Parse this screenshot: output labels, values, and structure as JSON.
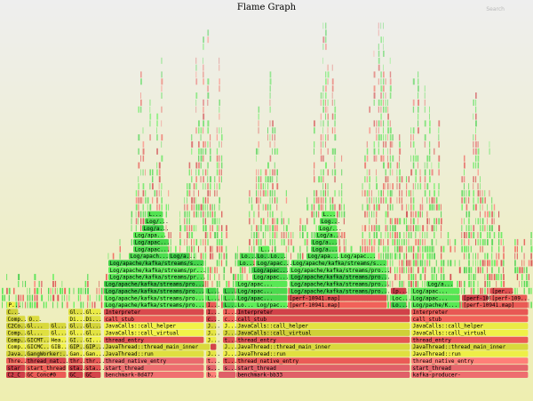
{
  "header": {
    "title": "Flame Graph",
    "search_label": "Search"
  },
  "colors": {
    "java": "#50e050",
    "jit": "#e0e040",
    "cpp": "#e05050",
    "light": "#f07070"
  },
  "chart_data": {
    "type": "flame",
    "title": "Flame Graph",
    "frames": [
      {
        "depth": 0,
        "x": 7,
        "w": 22,
        "label": "C2_C",
        "kind": "cpp"
      },
      {
        "depth": 0,
        "x": 29,
        "w": 46,
        "label": "GC_Conc#0",
        "kind": "cpp"
      },
      {
        "depth": 0,
        "x": 77,
        "w": 17,
        "label": "GC_",
        "kind": "cpp"
      },
      {
        "depth": 0,
        "x": 95,
        "w": 19,
        "label": "GC_",
        "kind": "cpp"
      },
      {
        "depth": 0,
        "x": 117,
        "w": 113,
        "label": "benchmark-0d477",
        "kind": "light"
      },
      {
        "depth": 0,
        "x": 232,
        "w": 12,
        "label": "b...",
        "kind": "light"
      },
      {
        "depth": 0,
        "x": 246,
        "w": 20,
        "label": "",
        "kind": "light"
      },
      {
        "depth": 0,
        "x": 266,
        "w": 196,
        "label": "benchmark-bb33",
        "kind": "light"
      },
      {
        "depth": 0,
        "x": 463,
        "w": 132,
        "label": "kafka-producer-",
        "kind": "light"
      },
      {
        "depth": 1,
        "x": 7,
        "w": 22,
        "label": "star",
        "kind": "cpp"
      },
      {
        "depth": 1,
        "x": 29,
        "w": 46,
        "label": "start_thread",
        "kind": "cpp"
      },
      {
        "depth": 1,
        "x": 77,
        "w": 17,
        "label": "sta...",
        "kind": "cpp"
      },
      {
        "depth": 1,
        "x": 95,
        "w": 19,
        "label": "sta...",
        "kind": "cpp"
      },
      {
        "depth": 1,
        "x": 117,
        "w": 113,
        "label": "start_thread",
        "kind": "light"
      },
      {
        "depth": 1,
        "x": 232,
        "w": 12,
        "label": "s...",
        "kind": "light"
      },
      {
        "depth": 1,
        "x": 251,
        "w": 14,
        "label": "s...",
        "kind": "light"
      },
      {
        "depth": 1,
        "x": 266,
        "w": 196,
        "label": "start_thread",
        "kind": "light"
      },
      {
        "depth": 1,
        "x": 463,
        "w": 132,
        "label": "start_thread",
        "kind": "light"
      },
      {
        "depth": 2,
        "x": 7,
        "w": 22,
        "label": "Thre...",
        "kind": "cpp"
      },
      {
        "depth": 2,
        "x": 29,
        "w": 46,
        "label": "thread_nat...",
        "kind": "cpp"
      },
      {
        "depth": 2,
        "x": 77,
        "w": 17,
        "label": "thr...",
        "kind": "cpp"
      },
      {
        "depth": 2,
        "x": 95,
        "w": 19,
        "label": "thr...",
        "kind": "cpp"
      },
      {
        "depth": 2,
        "x": 117,
        "w": 113,
        "label": "thread_native_entry",
        "kind": "light"
      },
      {
        "depth": 2,
        "x": 232,
        "w": 12,
        "label": "t...",
        "kind": "light"
      },
      {
        "depth": 2,
        "x": 251,
        "w": 14,
        "label": "t...",
        "kind": "cpp"
      },
      {
        "depth": 2,
        "x": 266,
        "w": 196,
        "label": "thread_native_entry",
        "kind": "cpp"
      },
      {
        "depth": 2,
        "x": 463,
        "w": 132,
        "label": "thread_native_entry",
        "kind": "light"
      },
      {
        "depth": 3,
        "x": 7,
        "w": 22,
        "label": "Java...",
        "kind": "jit"
      },
      {
        "depth": 3,
        "x": 29,
        "w": 46,
        "label": "GangWorker:...",
        "kind": "jit"
      },
      {
        "depth": 3,
        "x": 77,
        "w": 17,
        "label": "Gan...",
        "kind": "jit"
      },
      {
        "depth": 3,
        "x": 95,
        "w": 19,
        "label": "Gan...",
        "kind": "jit"
      },
      {
        "depth": 3,
        "x": 117,
        "w": 113,
        "label": "JavaThread::run",
        "kind": "jit"
      },
      {
        "depth": 3,
        "x": 232,
        "w": 12,
        "label": "J...",
        "kind": "jit"
      },
      {
        "depth": 3,
        "x": 251,
        "w": 14,
        "label": "J...",
        "kind": "jit"
      },
      {
        "depth": 3,
        "x": 266,
        "w": 196,
        "label": "JavaThread::run",
        "kind": "jit"
      },
      {
        "depth": 3,
        "x": 463,
        "w": 132,
        "label": "JavaThread::run",
        "kind": "jit"
      },
      {
        "depth": 4,
        "x": 7,
        "w": 22,
        "label": "Comp...",
        "kind": "jit"
      },
      {
        "depth": 4,
        "x": 29,
        "w": 27,
        "label": "GICMC...",
        "kind": "jit"
      },
      {
        "depth": 4,
        "x": 56,
        "w": 19,
        "label": "GIB...",
        "kind": "jit"
      },
      {
        "depth": 4,
        "x": 77,
        "w": 17,
        "label": "GIP...",
        "kind": "jit"
      },
      {
        "depth": 4,
        "x": 95,
        "w": 19,
        "label": "GIP...",
        "kind": "jit"
      },
      {
        "depth": 4,
        "x": 117,
        "w": 120,
        "label": "JavaThread::thread_main_inner",
        "kind": "jit"
      },
      {
        "depth": 4,
        "x": 237,
        "w": 7,
        "label": "",
        "kind": "cpp"
      },
      {
        "depth": 4,
        "x": 251,
        "w": 14,
        "label": "J...",
        "kind": "jit"
      },
      {
        "depth": 4,
        "x": 266,
        "w": 196,
        "label": "JavaThread::thread_main_inner",
        "kind": "jit"
      },
      {
        "depth": 4,
        "x": 463,
        "w": 132,
        "label": "JavaThread::thread_main_inner",
        "kind": "jit"
      },
      {
        "depth": 5,
        "x": 7,
        "w": 22,
        "label": "Comp...",
        "kind": "jit"
      },
      {
        "depth": 5,
        "x": 29,
        "w": 27,
        "label": "GICMT...",
        "kind": "jit"
      },
      {
        "depth": 5,
        "x": 56,
        "w": 19,
        "label": "Hea...",
        "kind": "jit"
      },
      {
        "depth": 5,
        "x": 77,
        "w": 17,
        "label": "GI...",
        "kind": "jit"
      },
      {
        "depth": 5,
        "x": 95,
        "w": 19,
        "label": "GI...",
        "kind": "jit"
      },
      {
        "depth": 5,
        "x": 117,
        "w": 113,
        "label": "thread_entry",
        "kind": "cpp"
      },
      {
        "depth": 5,
        "x": 232,
        "w": 12,
        "label": "J...",
        "kind": "jit"
      },
      {
        "depth": 5,
        "x": 251,
        "w": 14,
        "label": "t...",
        "kind": "cpp"
      },
      {
        "depth": 5,
        "x": 266,
        "w": 196,
        "label": "thread_entry",
        "kind": "cpp"
      },
      {
        "depth": 5,
        "x": 463,
        "w": 132,
        "label": "thread_entry",
        "kind": "cpp"
      },
      {
        "depth": 6,
        "x": 7,
        "w": 22,
        "label": "Comp...",
        "kind": "jit"
      },
      {
        "depth": 6,
        "x": 29,
        "w": 27,
        "label": "Gl...",
        "kind": "jit"
      },
      {
        "depth": 6,
        "x": 56,
        "w": 19,
        "label": "Gl...",
        "kind": "jit"
      },
      {
        "depth": 6,
        "x": 77,
        "w": 17,
        "label": "Gl...",
        "kind": "jit"
      },
      {
        "depth": 6,
        "x": 95,
        "w": 19,
        "label": "Gl...",
        "kind": "jit"
      },
      {
        "depth": 6,
        "x": 117,
        "w": 113,
        "label": "JavaCalls::call_virtual",
        "kind": "jit"
      },
      {
        "depth": 6,
        "x": 232,
        "w": 12,
        "label": "J...",
        "kind": "jit"
      },
      {
        "depth": 6,
        "x": 251,
        "w": 14,
        "label": "J...",
        "kind": "jit"
      },
      {
        "depth": 6,
        "x": 266,
        "w": 196,
        "label": "JavaCalls::call_virtual",
        "kind": "jit"
      },
      {
        "depth": 6,
        "x": 463,
        "w": 132,
        "label": "JavaCalls::call_virtual",
        "kind": "jit"
      },
      {
        "depth": 7,
        "x": 7,
        "w": 22,
        "label": "C2Co...",
        "kind": "jit"
      },
      {
        "depth": 7,
        "x": 29,
        "w": 27,
        "label": "Gl...",
        "kind": "jit"
      },
      {
        "depth": 7,
        "x": 56,
        "w": 19,
        "label": "Gl...",
        "kind": "jit"
      },
      {
        "depth": 7,
        "x": 77,
        "w": 17,
        "label": "Gl...",
        "kind": "jit"
      },
      {
        "depth": 7,
        "x": 95,
        "w": 19,
        "label": "Gl...",
        "kind": "jit"
      },
      {
        "depth": 7,
        "x": 117,
        "w": 113,
        "label": "JavaCalls::call_helper",
        "kind": "jit"
      },
      {
        "depth": 7,
        "x": 232,
        "w": 12,
        "label": "J...",
        "kind": "jit"
      },
      {
        "depth": 7,
        "x": 251,
        "w": 14,
        "label": "J...",
        "kind": "jit"
      },
      {
        "depth": 7,
        "x": 266,
        "w": 196,
        "label": "JavaCalls::call_helper",
        "kind": "jit"
      },
      {
        "depth": 7,
        "x": 463,
        "w": 132,
        "label": "JavaCalls::call_helper",
        "kind": "jit"
      },
      {
        "depth": 8,
        "x": 7,
        "w": 22,
        "label": "Comp...",
        "kind": "jit"
      },
      {
        "depth": 8,
        "x": 31,
        "w": 14,
        "label": "O...",
        "kind": "jit"
      },
      {
        "depth": 8,
        "x": 77,
        "w": 17,
        "label": "Di...",
        "kind": "jit"
      },
      {
        "depth": 8,
        "x": 95,
        "w": 19,
        "label": "Di...",
        "kind": "jit"
      },
      {
        "depth": 8,
        "x": 117,
        "w": 113,
        "label": "call_stub",
        "kind": "cpp"
      },
      {
        "depth": 8,
        "x": 232,
        "w": 12,
        "label": "c...",
        "kind": "cpp"
      },
      {
        "depth": 8,
        "x": 251,
        "w": 14,
        "label": "c...",
        "kind": "cpp"
      },
      {
        "depth": 8,
        "x": 266,
        "w": 196,
        "label": "call_stub",
        "kind": "cpp"
      },
      {
        "depth": 8,
        "x": 463,
        "w": 132,
        "label": "call_stub",
        "kind": "cpp"
      },
      {
        "depth": 9,
        "x": 7,
        "w": 14,
        "label": "C...",
        "kind": "jit"
      },
      {
        "depth": 9,
        "x": 77,
        "w": 17,
        "label": "Gl...",
        "kind": "jit"
      },
      {
        "depth": 9,
        "x": 95,
        "w": 19,
        "label": "Gl...",
        "kind": "jit"
      },
      {
        "depth": 9,
        "x": 117,
        "w": 113,
        "label": "Interpreter",
        "kind": "cpp"
      },
      {
        "depth": 9,
        "x": 232,
        "w": 12,
        "label": "I...",
        "kind": "cpp"
      },
      {
        "depth": 9,
        "x": 251,
        "w": 14,
        "label": "I...",
        "kind": "cpp"
      },
      {
        "depth": 9,
        "x": 266,
        "w": 196,
        "label": "Interpreter",
        "kind": "cpp"
      },
      {
        "depth": 9,
        "x": 463,
        "w": 132,
        "label": "Interpreter",
        "kind": "cpp"
      },
      {
        "depth": 10,
        "x": 8,
        "w": 10,
        "label": "P...",
        "kind": "jit"
      },
      {
        "depth": 10,
        "x": 117,
        "w": 113,
        "label": "Log/apache/kafka/streams/pro...",
        "kind": "java"
      },
      {
        "depth": 10,
        "x": 232,
        "w": 12,
        "label": "I...",
        "kind": "cpp"
      },
      {
        "depth": 10,
        "x": 251,
        "w": 14,
        "label": "L...",
        "kind": "java"
      },
      {
        "depth": 10,
        "x": 266,
        "w": 58,
        "label": "Lo... Log/pac...",
        "kind": "java"
      },
      {
        "depth": 10,
        "x": 324,
        "w": 112,
        "label": "[perf-10941.map]",
        "kind": "cpp"
      },
      {
        "depth": 10,
        "x": 440,
        "w": 18,
        "label": "Lo...",
        "kind": "java"
      },
      {
        "depth": 10,
        "x": 463,
        "w": 55,
        "label": "Log/pache/K...",
        "kind": "java"
      },
      {
        "depth": 10,
        "x": 520,
        "w": 75,
        "label": "[perf-10941.map]",
        "kind": "cpp"
      },
      {
        "depth": 11,
        "x": 117,
        "w": 113,
        "label": "Log/apache/kafka/streams/pro...",
        "kind": "java"
      },
      {
        "depth": 11,
        "x": 232,
        "w": 12,
        "label": "L...",
        "kind": "java"
      },
      {
        "depth": 11,
        "x": 251,
        "w": 14,
        "label": "L...",
        "kind": "java"
      },
      {
        "depth": 11,
        "x": 266,
        "w": 58,
        "label": "Log/apac...",
        "kind": "java"
      },
      {
        "depth": 11,
        "x": 324,
        "w": 112,
        "label": "[perf-10941.map]",
        "kind": "cpp"
      },
      {
        "depth": 11,
        "x": 440,
        "w": 18,
        "label": "Loc...",
        "kind": "java"
      },
      {
        "depth": 11,
        "x": 463,
        "w": 55,
        "label": "Log/apac...",
        "kind": "java"
      },
      {
        "depth": 11,
        "x": 520,
        "w": 30,
        "label": "[perf-109...",
        "kind": "cpp"
      },
      {
        "depth": 11,
        "x": 552,
        "w": 42,
        "label": "[perf-109...",
        "kind": "cpp"
      },
      {
        "depth": 12,
        "x": 117,
        "w": 113,
        "label": "Log/apache/kafka/streams/pro...",
        "kind": "java"
      },
      {
        "depth": 12,
        "x": 232,
        "w": 12,
        "label": "L...",
        "kind": "java"
      },
      {
        "depth": 12,
        "x": 251,
        "w": 14,
        "label": "L...",
        "kind": "java"
      },
      {
        "depth": 12,
        "x": 266,
        "w": 58,
        "label": "Log/apac...",
        "kind": "java"
      },
      {
        "depth": 12,
        "x": 326,
        "w": 110,
        "label": "Log/apache/kafka/streams/pro...",
        "kind": "java"
      },
      {
        "depth": 12,
        "x": 440,
        "w": 18,
        "label": "[p...",
        "kind": "cpp"
      },
      {
        "depth": 12,
        "x": 463,
        "w": 55,
        "label": "Log/apac...",
        "kind": "java"
      },
      {
        "depth": 12,
        "x": 552,
        "w": 26,
        "label": "[per...",
        "kind": "cpp"
      },
      {
        "depth": 13,
        "x": 117,
        "w": 113,
        "label": "Log/apache/kafka/streams/pro...",
        "kind": "java"
      },
      {
        "depth": 13,
        "x": 266,
        "w": 58,
        "label": "Log/apac...",
        "kind": "java"
      },
      {
        "depth": 13,
        "x": 326,
        "w": 110,
        "label": "Log/apache/kafka/streams/pro...",
        "kind": "java"
      },
      {
        "depth": 13,
        "x": 480,
        "w": 30,
        "label": "Log/a...",
        "kind": "java"
      },
      {
        "depth": 14,
        "x": 122,
        "w": 108,
        "label": "Log/apache/kafka/streams/pr...",
        "kind": "java"
      },
      {
        "depth": 14,
        "x": 284,
        "w": 40,
        "label": "Log/apac...",
        "kind": "java"
      },
      {
        "depth": 14,
        "x": 326,
        "w": 110,
        "label": "Log/apache/kafka/streams/pro...",
        "kind": "java"
      },
      {
        "depth": 15,
        "x": 122,
        "w": 108,
        "label": "Log/apache/kafka/streams/pr...",
        "kind": "java"
      },
      {
        "depth": 15,
        "x": 284,
        "w": 40,
        "label": "Log/apac...",
        "kind": "java"
      },
      {
        "depth": 15,
        "x": 326,
        "w": 110,
        "label": "Log/apache/kafka/streams/pro...",
        "kind": "java"
      },
      {
        "depth": 16,
        "x": 122,
        "w": 108,
        "label": "Log/apache/kafka/streams/s...",
        "kind": "java"
      },
      {
        "depth": 16,
        "x": 268,
        "w": 18,
        "label": "Lo...",
        "kind": "java"
      },
      {
        "depth": 16,
        "x": 288,
        "w": 36,
        "label": "Log/apac...",
        "kind": "java"
      },
      {
        "depth": 16,
        "x": 328,
        "w": 108,
        "label": "Log/apache/kafka/streams/s...",
        "kind": "java"
      },
      {
        "depth": 17,
        "x": 145,
        "w": 45,
        "label": "Log/apach...",
        "kind": "java"
      },
      {
        "depth": 17,
        "x": 190,
        "w": 24,
        "label": "Log/a...",
        "kind": "java"
      },
      {
        "depth": 17,
        "x": 270,
        "w": 16,
        "label": "Lo...",
        "kind": "java"
      },
      {
        "depth": 17,
        "x": 288,
        "w": 14,
        "label": "Lo...",
        "kind": "java"
      },
      {
        "depth": 17,
        "x": 303,
        "w": 18,
        "label": "Lo...",
        "kind": "java"
      },
      {
        "depth": 17,
        "x": 345,
        "w": 36,
        "label": "Log/apa...",
        "kind": "java"
      },
      {
        "depth": 17,
        "x": 382,
        "w": 40,
        "label": "Log/apac...",
        "kind": "java"
      },
      {
        "depth": 18,
        "x": 150,
        "w": 40,
        "label": "Log/apac...",
        "kind": "java"
      },
      {
        "depth": 18,
        "x": 292,
        "w": 12,
        "label": "L...",
        "kind": "java"
      },
      {
        "depth": 18,
        "x": 350,
        "w": 30,
        "label": "Log/a...",
        "kind": "java"
      },
      {
        "depth": 19,
        "x": 150,
        "w": 40,
        "label": "Log/apac...",
        "kind": "java"
      },
      {
        "depth": 19,
        "x": 350,
        "w": 30,
        "label": "Log/a...",
        "kind": "java"
      },
      {
        "depth": 20,
        "x": 150,
        "w": 36,
        "label": "Log/apa...",
        "kind": "java"
      },
      {
        "depth": 20,
        "x": 355,
        "w": 26,
        "label": "Log/a...",
        "kind": "java"
      },
      {
        "depth": 21,
        "x": 160,
        "w": 25,
        "label": "Log/a...",
        "kind": "java"
      },
      {
        "depth": 21,
        "x": 358,
        "w": 22,
        "label": "Log/...",
        "kind": "java"
      },
      {
        "depth": 22,
        "x": 163,
        "w": 22,
        "label": "Log/...",
        "kind": "java"
      },
      {
        "depth": 22,
        "x": 360,
        "w": 20,
        "label": "Log...",
        "kind": "java"
      },
      {
        "depth": 23,
        "x": 166,
        "w": 18,
        "label": "L...",
        "kind": "java"
      },
      {
        "depth": 23,
        "x": 362,
        "w": 16,
        "label": "L...",
        "kind": "java"
      }
    ]
  }
}
